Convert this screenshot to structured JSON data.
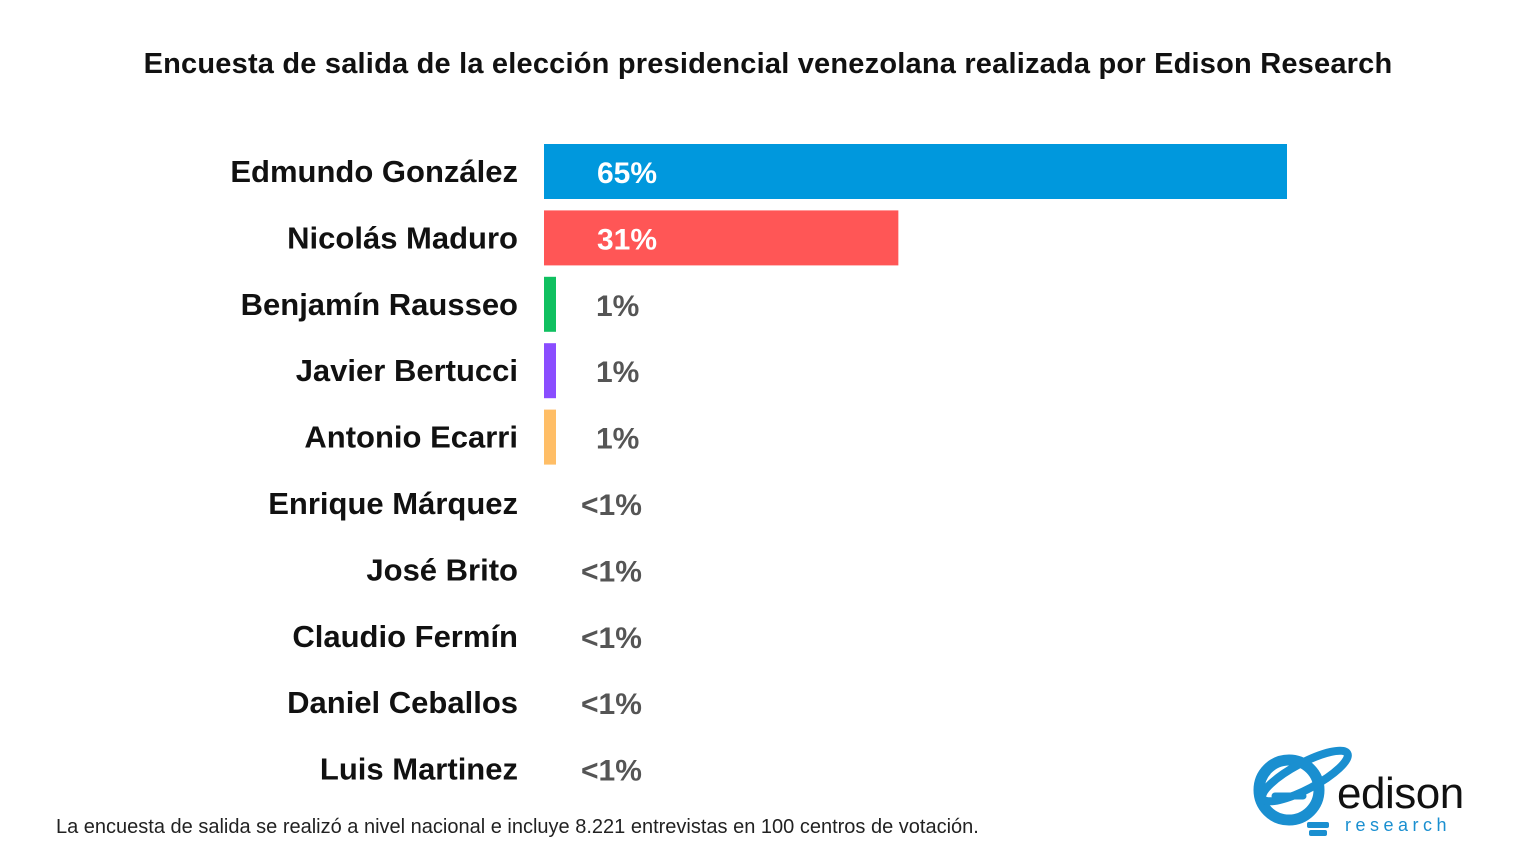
{
  "chart_data": {
    "type": "bar",
    "orientation": "horizontal",
    "title": "Encuesta de salida de la elección presidencial venezolana realizada por Edison Research",
    "categories": [
      "Edmundo González",
      "Nicolás Maduro",
      "Benjamín Rausseo",
      "Javier Bertucci",
      "Antonio Ecarri",
      "Enrique Márquez",
      "José Brito",
      "Claudio Fermín",
      "Daniel Ceballos",
      "Luis Martinez"
    ],
    "values": [
      65,
      31,
      1,
      1,
      1,
      0,
      0,
      0,
      0,
      0
    ],
    "value_labels": [
      "65%",
      "31%",
      "1%",
      "1%",
      "1%",
      "<1%",
      "<1%",
      "<1%",
      "<1%",
      "<1%"
    ],
    "colors": [
      "#0098dd",
      "#ff5656",
      "#10c060",
      "#8a4dff",
      "#ffbe66",
      "",
      "",
      "",
      "",
      ""
    ],
    "xlim": [
      0,
      65
    ],
    "xlabel": "",
    "ylabel": "",
    "grid": false
  },
  "footnote": "La encuesta de salida se realizó a nivel nacional e incluye 8.221 entrevistas en 100 centros de votación.",
  "logo": {
    "name": "edison",
    "tagline": "research",
    "color": "#1a8fd0"
  }
}
